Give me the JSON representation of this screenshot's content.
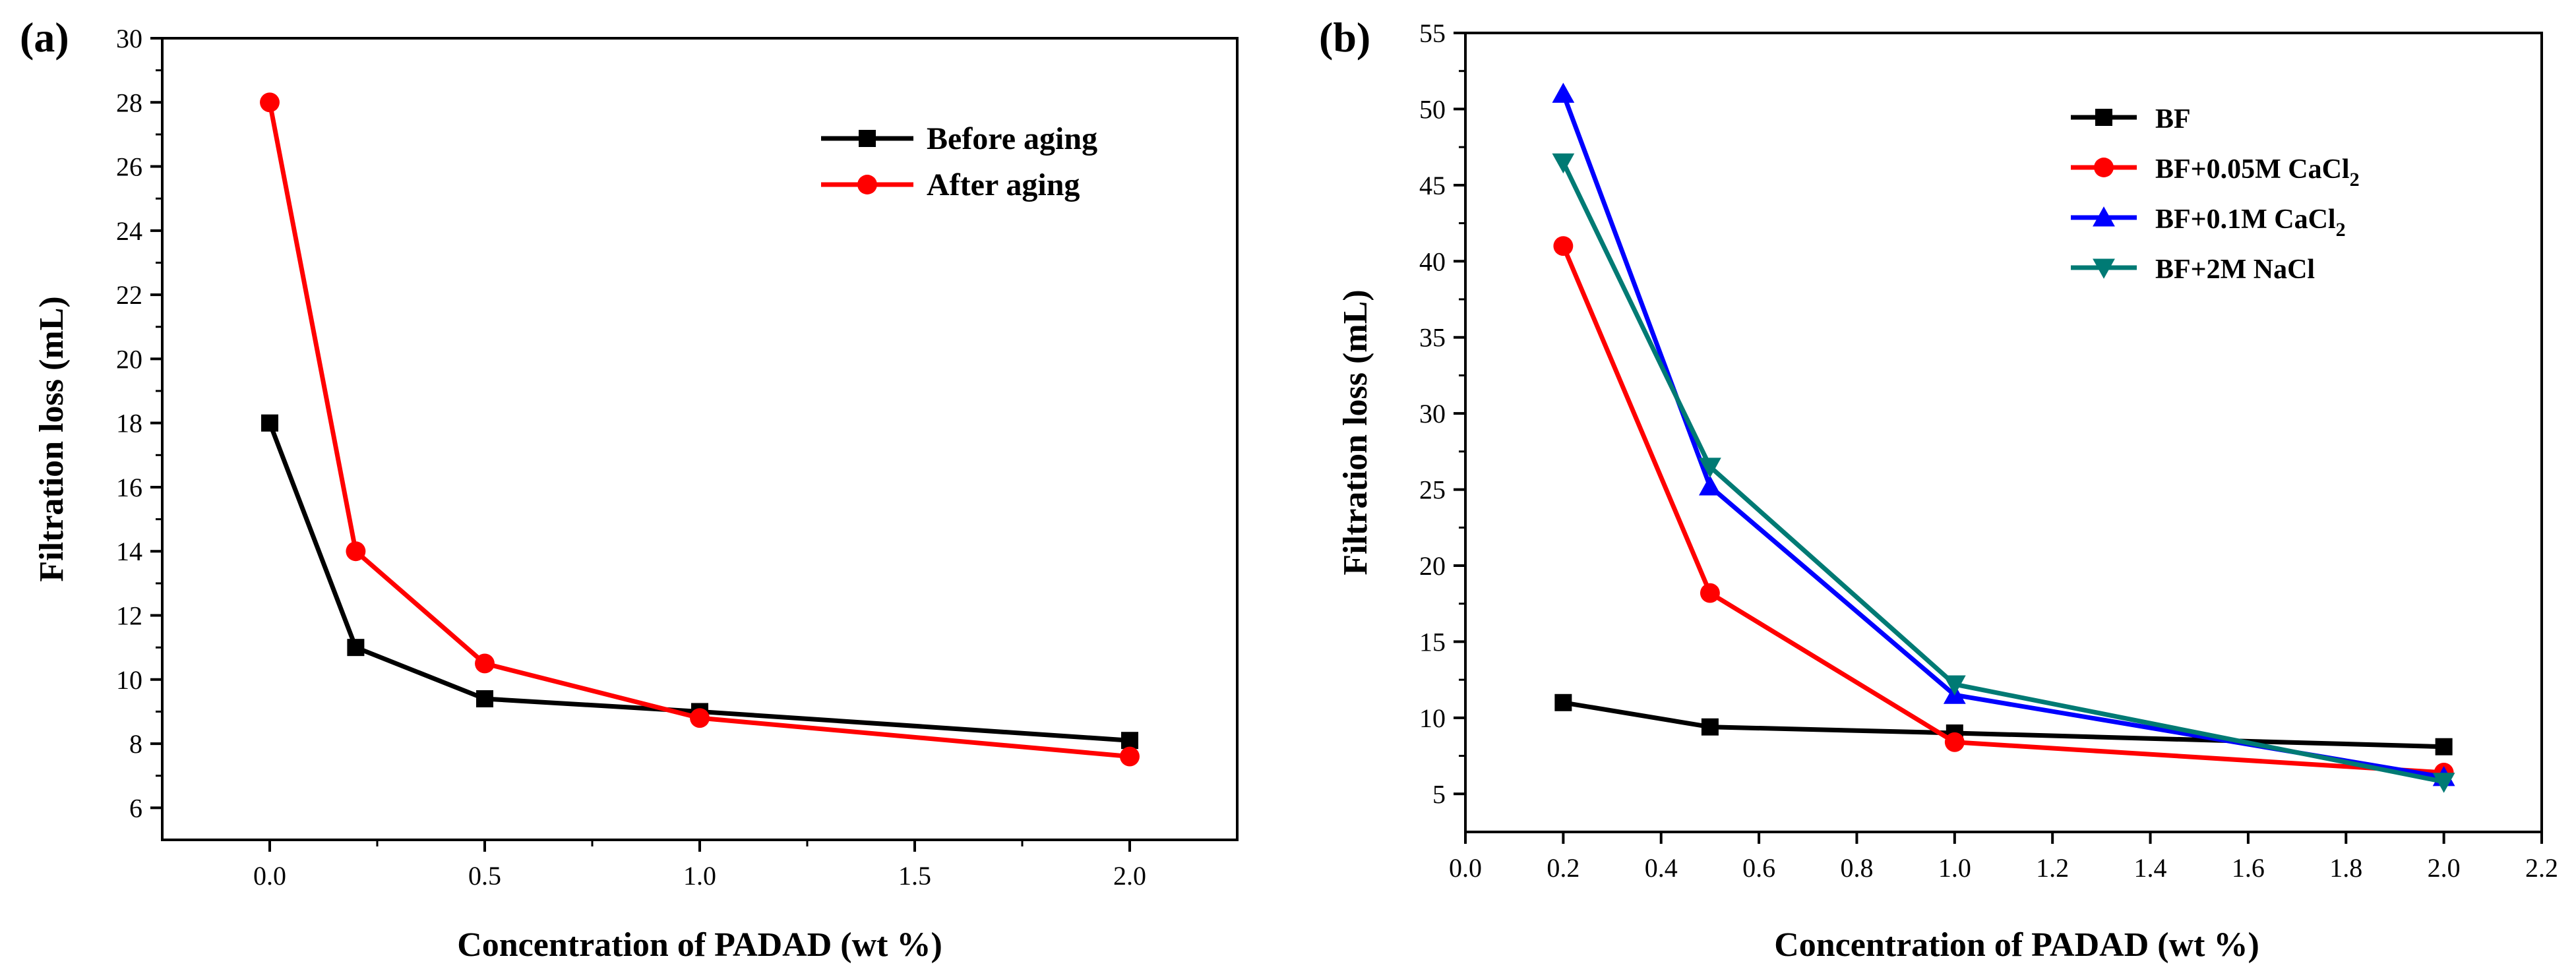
{
  "chart_data": [
    {
      "type": "line",
      "panel_label": "(a)",
      "xlabel": "Concentration of PADAD (wt %)",
      "ylabel": "Filtration loss (mL)",
      "xlim": [
        -0.25,
        2.25
      ],
      "ylim": [
        5,
        30
      ],
      "x_ticks": [
        0.0,
        0.5,
        1.0,
        1.5,
        2.0
      ],
      "x_tick_labels": [
        "0.0",
        "0.5",
        "1.0",
        "1.5",
        "2.0"
      ],
      "y_ticks": [
        6,
        8,
        10,
        12,
        14,
        16,
        18,
        20,
        22,
        24,
        26,
        28,
        30
      ],
      "y_tick_labels": [
        "6",
        "8",
        "10",
        "12",
        "14",
        "16",
        "18",
        "20",
        "22",
        "24",
        "26",
        "28",
        "30"
      ],
      "legend_position": "top-right",
      "series": [
        {
          "name": "Before aging",
          "color": "#000000",
          "marker": "square",
          "x": [
            0.0,
            0.2,
            0.5,
            1.0,
            2.0
          ],
          "values": [
            18,
            11,
            9.4,
            9.0,
            8.1
          ]
        },
        {
          "name": "After aging",
          "color": "#ff0000",
          "marker": "circle",
          "x": [
            0.0,
            0.2,
            0.5,
            1.0,
            2.0
          ],
          "values": [
            28,
            14,
            10.5,
            8.8,
            7.6
          ]
        }
      ]
    },
    {
      "type": "line",
      "panel_label": "(b)",
      "xlabel": "Concentration of PADAD (wt %)",
      "ylabel": "Filtration loss (mL)",
      "xlim": [
        0.0,
        2.2
      ],
      "ylim": [
        2.5,
        55
      ],
      "x_ticks": [
        0.0,
        0.2,
        0.4,
        0.6,
        0.8,
        1.0,
        1.2,
        1.4,
        1.6,
        1.8,
        2.0,
        2.2
      ],
      "x_tick_labels": [
        "0.0",
        "0.2",
        "0.4",
        "0.6",
        "0.8",
        "1.0",
        "1.2",
        "1.4",
        "1.6",
        "1.8",
        "2.0",
        "2.2"
      ],
      "y_ticks": [
        5,
        10,
        15,
        20,
        25,
        30,
        35,
        40,
        45,
        50,
        55
      ],
      "y_tick_labels": [
        "5",
        "10",
        "15",
        "20",
        "25",
        "30",
        "35",
        "40",
        "45",
        "50",
        "55"
      ],
      "legend_position": "top-right",
      "series": [
        {
          "name": "BF",
          "label_main": "BF",
          "label_sub": "",
          "color": "#000000",
          "marker": "square",
          "x": [
            0.2,
            0.5,
            1.0,
            2.0
          ],
          "values": [
            11,
            9.4,
            9.0,
            8.1
          ]
        },
        {
          "name": "BF+0.05M CaCl2",
          "label_main": "BF+0.05M  CaCl",
          "label_sub": "2",
          "color": "#ff0000",
          "marker": "circle",
          "x": [
            0.2,
            0.5,
            1.0,
            2.0
          ],
          "values": [
            41,
            18.2,
            8.4,
            6.4
          ]
        },
        {
          "name": "BF+0.1M CaCl2",
          "label_main": "BF+0.1M  CaCl",
          "label_sub": "2",
          "color": "#0000ff",
          "marker": "triangle-up",
          "x": [
            0.2,
            0.5,
            1.0,
            2.0
          ],
          "values": [
            51,
            25.2,
            11.5,
            6.1
          ]
        },
        {
          "name": "BF+2M NaCl",
          "label_main": "BF+2M NaCl",
          "label_sub": "",
          "color": "#007a74",
          "marker": "triangle-down",
          "x": [
            0.2,
            0.5,
            1.0,
            2.0
          ],
          "values": [
            46.5,
            26.5,
            12.2,
            5.8
          ]
        }
      ]
    }
  ]
}
